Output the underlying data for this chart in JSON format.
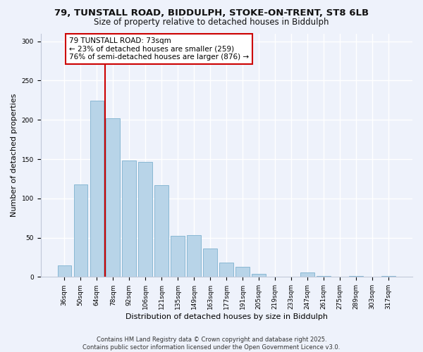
{
  "title": "79, TUNSTALL ROAD, BIDDULPH, STOKE-ON-TRENT, ST8 6LB",
  "subtitle": "Size of property relative to detached houses in Biddulph",
  "xlabel": "Distribution of detached houses by size in Biddulph",
  "ylabel": "Number of detached properties",
  "categories": [
    "36sqm",
    "50sqm",
    "64sqm",
    "78sqm",
    "92sqm",
    "106sqm",
    "121sqm",
    "135sqm",
    "149sqm",
    "163sqm",
    "177sqm",
    "191sqm",
    "205sqm",
    "219sqm",
    "233sqm",
    "247sqm",
    "261sqm",
    "275sqm",
    "289sqm",
    "303sqm",
    "317sqm"
  ],
  "values": [
    15,
    118,
    224,
    202,
    148,
    146,
    117,
    52,
    53,
    36,
    18,
    13,
    4,
    0,
    0,
    6,
    1,
    0,
    1,
    0,
    1
  ],
  "bar_color": "#b8d4e8",
  "bar_edge_color": "#89b8d4",
  "vline_color": "#cc0000",
  "annotation_line1": "79 TUNSTALL ROAD: 73sqm",
  "annotation_line2": "← 23% of detached houses are smaller (259)",
  "annotation_line3": "76% of semi-detached houses are larger (876) →",
  "annotation_box_color": "white",
  "annotation_border_color": "#cc0000",
  "ylim": [
    0,
    310
  ],
  "yticks": [
    0,
    50,
    100,
    150,
    200,
    250,
    300
  ],
  "footer_line1": "Contains HM Land Registry data © Crown copyright and database right 2025.",
  "footer_line2": "Contains public sector information licensed under the Open Government Licence v3.0.",
  "background_color": "#eef2fb",
  "grid_color": "#ffffff",
  "title_fontsize": 9.5,
  "subtitle_fontsize": 8.5,
  "tick_fontsize": 6.5,
  "xlabel_fontsize": 8,
  "ylabel_fontsize": 8,
  "annotation_fontsize": 7.5,
  "footer_fontsize": 6
}
